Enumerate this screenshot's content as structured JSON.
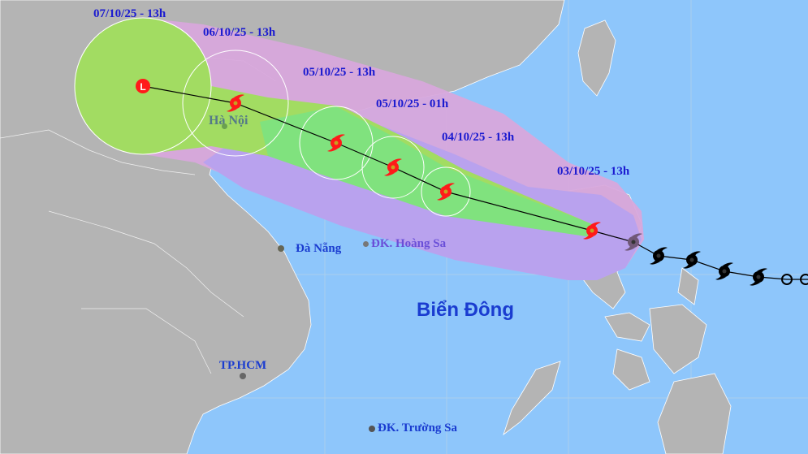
{
  "colors": {
    "sea": "#8ec6fb",
    "land": "#b4b4b4",
    "risk_zone": "#d8a8dc",
    "danger_zone": "#b9a2ee",
    "forecast_cone": "#a2dc62",
    "forecast_cone_inner": "#80e27e",
    "forecast_point": "#ff1a1a",
    "past_point": "#000000"
  },
  "forecast_labels": [
    "07/10/25 - 13h",
    "06/10/25 - 13h",
    "05/10/25 - 13h",
    "05/10/25 - 01h",
    "04/10/25 - 13h",
    "03/10/25 - 13h"
  ],
  "forecast_points": [
    {
      "time": "07/10/25 - 13h",
      "icon": "low-pressure-L"
    },
    {
      "time": "06/10/25 - 13h",
      "icon": "storm-icon"
    },
    {
      "time": "05/10/25 - 13h",
      "icon": "storm-icon"
    },
    {
      "time": "05/10/25 - 01h",
      "icon": "storm-icon"
    },
    {
      "time": "04/10/25 - 13h",
      "icon": "storm-icon"
    },
    {
      "time": "03/10/25 - 13h",
      "icon": "storm-icon"
    }
  ],
  "low_marker": "L",
  "places": {
    "hanoi": "Hà Nội",
    "danang": "Đà Nẵng",
    "hoangsa": "ĐK. Hoàng Sa",
    "sea": "Biển Đông",
    "hcm": "TP.HCM",
    "truongsa": "ĐK. Trường Sa"
  }
}
